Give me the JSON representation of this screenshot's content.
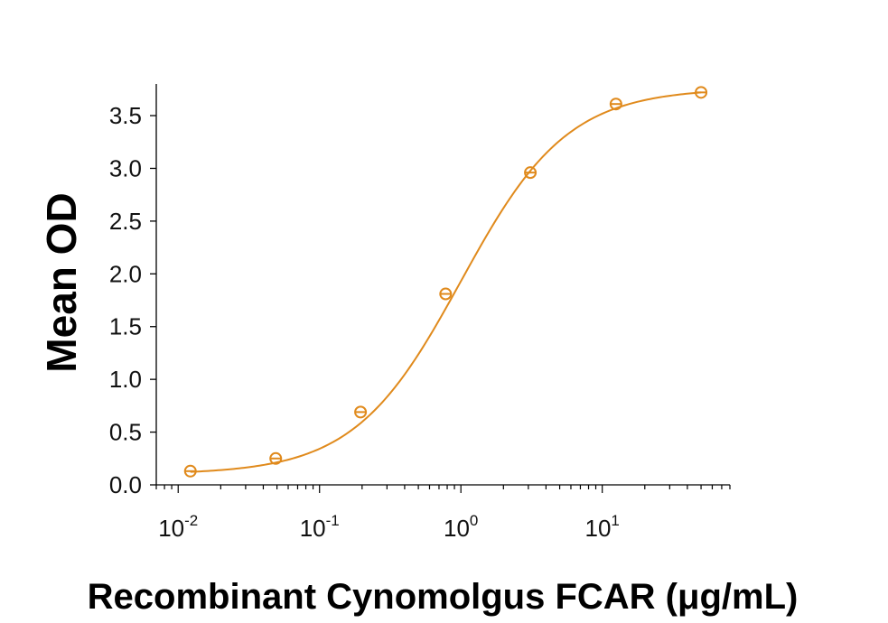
{
  "chart_data": {
    "type": "scatter",
    "title": "",
    "xlabel": "Recombinant Cynomolgus FCAR (μg/mL)",
    "ylabel": "Mean OD",
    "x_scale": "log",
    "xlim": [
      0.007,
      80
    ],
    "ylim": [
      0.0,
      3.8
    ],
    "x_ticks": [
      {
        "value": 0.01,
        "base": "10",
        "exp": "-2"
      },
      {
        "value": 0.1,
        "base": "10",
        "exp": "-1"
      },
      {
        "value": 1,
        "base": "10",
        "exp": "0"
      },
      {
        "value": 10,
        "base": "10",
        "exp": "1"
      }
    ],
    "y_ticks": [
      "0.0",
      "0.5",
      "1.0",
      "1.5",
      "2.0",
      "2.5",
      "3.0",
      "3.5"
    ],
    "grid": false,
    "legend": "none",
    "color": "#e08a1c",
    "series": [
      {
        "x": [
          0.0122,
          0.049,
          0.195,
          0.78,
          3.1,
          12.5,
          50
        ],
        "y": [
          0.13,
          0.25,
          0.69,
          1.81,
          2.96,
          3.61,
          3.72
        ]
      }
    ],
    "fit_curve": {
      "model": "4PL",
      "bottom": 0.1,
      "top": 3.76,
      "ec50": 1.0,
      "hill": 1.15
    }
  }
}
